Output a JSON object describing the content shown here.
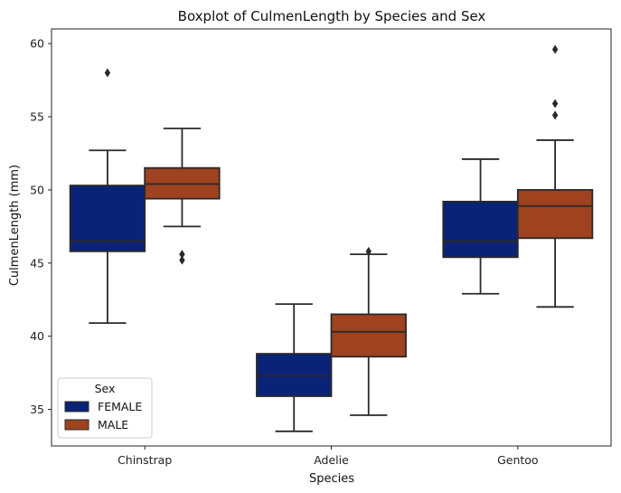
{
  "chart_data": {
    "type": "boxplot",
    "title": "Boxplot of CulmenLength by Species and Sex",
    "xlabel": "Species",
    "ylabel": "CulmenLength (mm)",
    "categories": [
      "Chinstrap",
      "Adelie",
      "Gentoo"
    ],
    "ylim": [
      32.5,
      61.0
    ],
    "yticks": [
      35,
      40,
      45,
      50,
      55,
      60
    ],
    "grid": false,
    "legend": {
      "title": "Sex",
      "placement": "lower-left"
    },
    "series": [
      {
        "name": "FEMALE",
        "color": "#0a2377",
        "boxes": [
          {
            "category": "Chinstrap",
            "whisker_low": 40.9,
            "q1": 45.8,
            "median": 46.5,
            "q3": 50.3,
            "whisker_high": 52.7,
            "outliers": [
              58.0
            ]
          },
          {
            "category": "Adelie",
            "whisker_low": 33.5,
            "q1": 35.9,
            "median": 37.3,
            "q3": 38.8,
            "whisker_high": 42.2,
            "outliers": []
          },
          {
            "category": "Gentoo",
            "whisker_low": 42.9,
            "q1": 45.4,
            "median": 46.5,
            "q3": 49.2,
            "whisker_high": 52.1,
            "outliers": []
          }
        ]
      },
      {
        "name": "MALE",
        "color": "#9e4220",
        "boxes": [
          {
            "category": "Chinstrap",
            "whisker_low": 47.5,
            "q1": 49.4,
            "median": 50.4,
            "q3": 51.5,
            "whisker_high": 54.2,
            "outliers": [
              45.2,
              45.6
            ]
          },
          {
            "category": "Adelie",
            "whisker_low": 34.6,
            "q1": 38.6,
            "median": 40.3,
            "q3": 41.5,
            "whisker_high": 45.6,
            "outliers": [
              45.8
            ]
          },
          {
            "category": "Gentoo",
            "whisker_low": 42.0,
            "q1": 46.7,
            "median": 48.9,
            "q3": 50.0,
            "whisker_high": 53.4,
            "outliers": [
              55.1,
              55.9,
              59.6
            ]
          }
        ]
      }
    ]
  }
}
